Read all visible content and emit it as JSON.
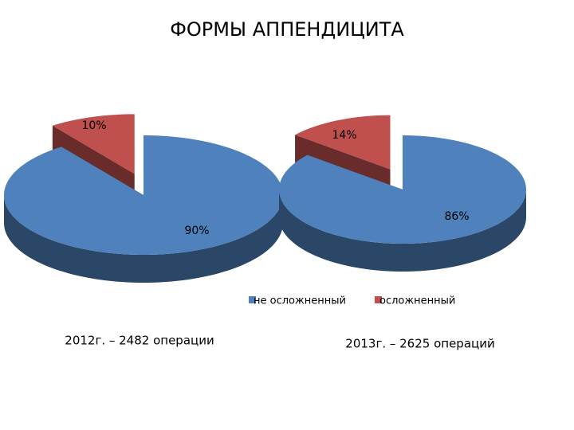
{
  "title": "ФОРМЫ АППЕНДИЦИТА",
  "chart_data": [
    {
      "type": "pie3d",
      "caption": "2012г. – 2482 операции",
      "categories": [
        "не осложненный",
        "осложненный"
      ],
      "values": [
        90,
        10
      ],
      "value_labels": [
        "90%",
        "10%"
      ],
      "colors": [
        "#4f81bd",
        "#c0504d"
      ]
    },
    {
      "type": "pie3d",
      "caption": "2013г. – 2625 операций",
      "categories": [
        "не осложненный",
        "осложненный"
      ],
      "values": [
        86,
        14
      ],
      "value_labels": [
        "86%",
        "14%"
      ],
      "colors": [
        "#4f81bd",
        "#c0504d"
      ]
    }
  ]
}
